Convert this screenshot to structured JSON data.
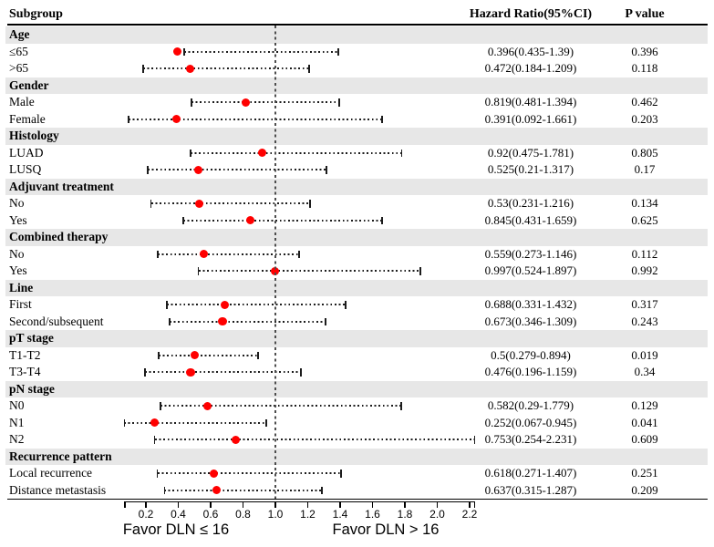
{
  "header": {
    "subgroup": "Subgroup",
    "hazard_ratio": "Hazard Ratio(95%CI)",
    "p_value": "P value"
  },
  "axis": {
    "favor_left": "Favor DLN ≤ 16",
    "favor_right": "Favor DLN > 16"
  },
  "colors": {
    "dot": "#ff0000",
    "band": "#e7e7e7",
    "ci_line": "#1c1c1c",
    "reference_line": "#4d4d4d"
  },
  "chart_data": {
    "type": "scatter",
    "subtype": "forest_plot",
    "title": "",
    "columns": [
      "Subgroup",
      "Hazard Ratio(95%CI)",
      "P value"
    ],
    "x_ticks": [
      0.2,
      0.4,
      0.6,
      0.8,
      1.0,
      1.2,
      1.4,
      1.6,
      1.8,
      2.0,
      2.2
    ],
    "xlim": [
      0.07,
      2.23
    ],
    "reference_line": 1.0,
    "grid": false,
    "favor_left": "Favor DLN ≤ 16",
    "favor_right": "Favor DLN > 16",
    "groups": [
      {
        "group": "Age",
        "rows": [
          {
            "label": "≤65",
            "hr": 0.396,
            "ci_low": 0.435,
            "ci_high": 1.39,
            "hr_ci_text": "0.396(0.435-1.39)",
            "p": "0.396"
          },
          {
            "label": ">65",
            "hr": 0.472,
            "ci_low": 0.184,
            "ci_high": 1.209,
            "hr_ci_text": "0.472(0.184-1.209)",
            "p": "0.118"
          }
        ]
      },
      {
        "group": "Gender",
        "rows": [
          {
            "label": "Male",
            "hr": 0.819,
            "ci_low": 0.481,
            "ci_high": 1.394,
            "hr_ci_text": "0.819(0.481-1.394)",
            "p": "0.462"
          },
          {
            "label": "Female",
            "hr": 0.391,
            "ci_low": 0.092,
            "ci_high": 1.661,
            "hr_ci_text": "0.391(0.092-1.661)",
            "p": "0.203"
          }
        ]
      },
      {
        "group": "Histology",
        "rows": [
          {
            "label": "LUAD",
            "hr": 0.92,
            "ci_low": 0.475,
            "ci_high": 1.781,
            "hr_ci_text": "0.92(0.475-1.781)",
            "p": "0.805"
          },
          {
            "label": "LUSQ",
            "hr": 0.525,
            "ci_low": 0.21,
            "ci_high": 1.317,
            "hr_ci_text": "0.525(0.21-1.317)",
            "p": "0.17"
          }
        ]
      },
      {
        "group": "Adjuvant treatment",
        "rows": [
          {
            "label": "No",
            "hr": 0.53,
            "ci_low": 0.231,
            "ci_high": 1.216,
            "hr_ci_text": "0.53(0.231-1.216)",
            "p": "0.134"
          },
          {
            "label": "Yes",
            "hr": 0.845,
            "ci_low": 0.431,
            "ci_high": 1.659,
            "hr_ci_text": "0.845(0.431-1.659)",
            "p": "0.625"
          }
        ]
      },
      {
        "group": "Combined therapy",
        "rows": [
          {
            "label": "No",
            "hr": 0.559,
            "ci_low": 0.273,
            "ci_high": 1.146,
            "hr_ci_text": "0.559(0.273-1.146)",
            "p": "0.112"
          },
          {
            "label": "Yes",
            "hr": 0.997,
            "ci_low": 0.524,
            "ci_high": 1.897,
            "hr_ci_text": "0.997(0.524-1.897)",
            "p": "0.992"
          }
        ]
      },
      {
        "group": "Line",
        "rows": [
          {
            "label": "First",
            "hr": 0.688,
            "ci_low": 0.331,
            "ci_high": 1.432,
            "hr_ci_text": "0.688(0.331-1.432)",
            "p": "0.317"
          },
          {
            "label": "Second/subsequent",
            "hr": 0.673,
            "ci_low": 0.346,
            "ci_high": 1.309,
            "hr_ci_text": "0.673(0.346-1.309)",
            "p": "0.243"
          }
        ]
      },
      {
        "group": "pT stage",
        "rows": [
          {
            "label": "T1-T2",
            "hr": 0.5,
            "ci_low": 0.279,
            "ci_high": 0.894,
            "hr_ci_text": "0.5(0.279-0.894)",
            "p": "0.019"
          },
          {
            "label": "T3-T4",
            "hr": 0.476,
            "ci_low": 0.196,
            "ci_high": 1.159,
            "hr_ci_text": "0.476(0.196-1.159)",
            "p": "0.34"
          }
        ]
      },
      {
        "group": "pN stage",
        "rows": [
          {
            "label": "N0",
            "hr": 0.582,
            "ci_low": 0.29,
            "ci_high": 1.779,
            "hr_ci_text": "0.582(0.29-1.779)",
            "p": "0.129"
          },
          {
            "label": "N1",
            "hr": 0.252,
            "ci_low": 0.067,
            "ci_high": 0.945,
            "hr_ci_text": "0.252(0.067-0.945)",
            "p": "0.041"
          },
          {
            "label": "N2",
            "hr": 0.753,
            "ci_low": 0.254,
            "ci_high": 2.231,
            "hr_ci_text": "0.753(0.254-2.231)",
            "p": "0.609"
          }
        ]
      },
      {
        "group": "Recurrence pattern",
        "rows": [
          {
            "label": "Local recurrence",
            "hr": 0.618,
            "ci_low": 0.271,
            "ci_high": 1.407,
            "hr_ci_text": "0.618(0.271-1.407)",
            "p": "0.251"
          },
          {
            "label": "Distance metastasis",
            "hr": 0.637,
            "ci_low": 0.315,
            "ci_high": 1.287,
            "hr_ci_text": "0.637(0.315-1.287)",
            "p": "0.209"
          }
        ]
      }
    ]
  }
}
